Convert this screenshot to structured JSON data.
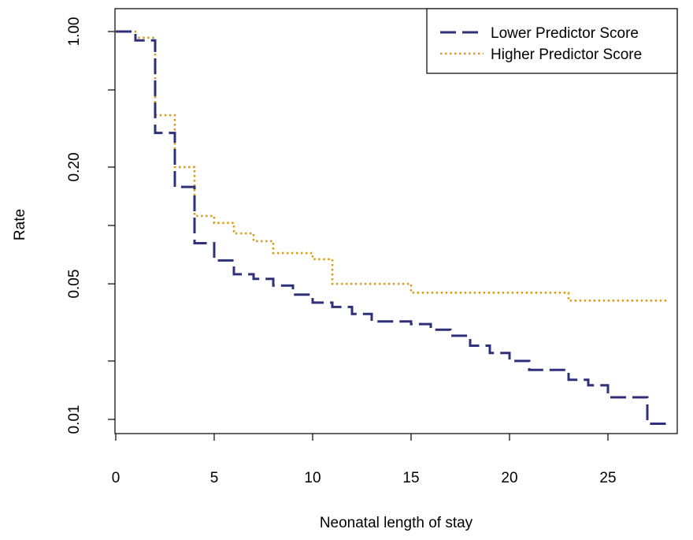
{
  "chart_data": {
    "type": "line",
    "xlabel": "Neonatal length of stay",
    "ylabel": "Rate",
    "xlim": [
      0,
      28
    ],
    "ylim": [
      0.0095,
      1.12
    ],
    "y_scale": "log",
    "x_ticks": [
      0,
      5,
      10,
      15,
      20,
      25
    ],
    "x_tick_labels": [
      "0",
      "5",
      "10",
      "15",
      "20",
      "25"
    ],
    "y_ticks": [
      1.0,
      0.5,
      0.2,
      0.1,
      0.05,
      0.02,
      0.01
    ],
    "y_tick_labels": [
      "1.00",
      "",
      "0.20",
      "",
      "0.05",
      "",
      "0.01"
    ],
    "grid": false,
    "legend_position": "top-right",
    "step": true,
    "series": [
      {
        "name": "Lower Predictor Score",
        "color": "#2e3179",
        "dash": "long-dash",
        "x": [
          0,
          1,
          2,
          3,
          4,
          5,
          6,
          7,
          8,
          9,
          10,
          11,
          12,
          13,
          14,
          15,
          16,
          17,
          18,
          19,
          20,
          21,
          22,
          23,
          24,
          25,
          26,
          27,
          28
        ],
        "y": [
          1.0,
          0.9,
          0.3,
          0.158,
          0.081,
          0.066,
          0.056,
          0.053,
          0.049,
          0.044,
          0.04,
          0.038,
          0.035,
          0.032,
          0.032,
          0.031,
          0.029,
          0.027,
          0.024,
          0.022,
          0.02,
          0.018,
          0.018,
          0.016,
          0.015,
          0.013,
          0.013,
          0.0095,
          0.0095
        ]
      },
      {
        "name": "Higher Predictor Score",
        "color": "#d89d1b",
        "dash": "dotted",
        "x": [
          0,
          1,
          2,
          3,
          4,
          5,
          6,
          7,
          8,
          9,
          10,
          11,
          12,
          13,
          14,
          15,
          16,
          17,
          18,
          19,
          20,
          21,
          22,
          23,
          24,
          25,
          26,
          27,
          28
        ],
        "y": [
          1.0,
          0.93,
          0.37,
          0.2,
          0.112,
          0.103,
          0.091,
          0.083,
          0.072,
          0.072,
          0.067,
          0.05,
          0.05,
          0.05,
          0.05,
          0.045,
          0.045,
          0.045,
          0.045,
          0.045,
          0.045,
          0.045,
          0.045,
          0.041,
          0.041,
          0.041,
          0.041,
          0.041,
          0.041
        ]
      }
    ]
  }
}
